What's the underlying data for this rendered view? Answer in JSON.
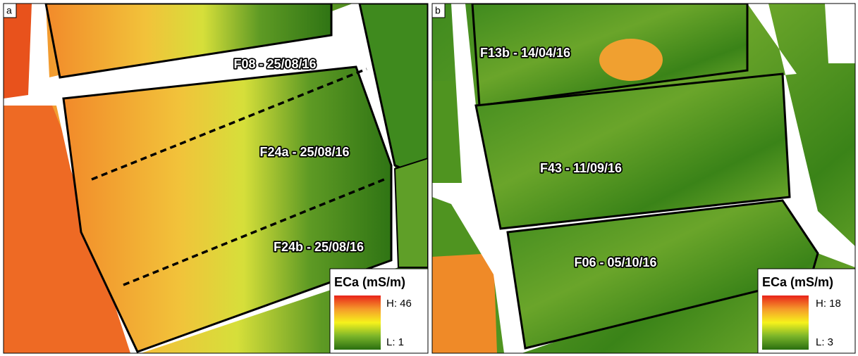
{
  "panels": [
    {
      "letter": "a",
      "fields": [
        {
          "label": "F08 - 25/08/16"
        },
        {
          "label": "F24a - 25/08/16"
        },
        {
          "label": "F24b - 25/08/16"
        }
      ],
      "legend": {
        "title": "ECa (mS/m)",
        "high": "H: 46",
        "low": "L: 1"
      }
    },
    {
      "letter": "b",
      "fields": [
        {
          "label": "F13b -  14/04/16"
        },
        {
          "label": "F43 - 11/09/16"
        },
        {
          "label": "F06 - 05/10/16"
        }
      ],
      "legend": {
        "title": "ECa (mS/m)",
        "high": "H: 18",
        "low": "L: 3"
      }
    }
  ]
}
